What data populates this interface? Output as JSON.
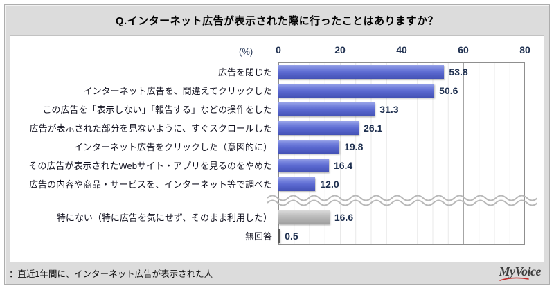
{
  "title": "Q.インターネット広告が表示された際に行ったことはありますか？",
  "footer": {
    "note": "：直近1年間に、インターネット広告が表示された人",
    "logo": "MyVoice"
  },
  "chart_data": {
    "type": "bar",
    "orientation": "horizontal",
    "title": "Q.インターネット広告が表示された際に行ったことはありますか？",
    "unit_label": "(%)",
    "xlabel": "",
    "ylabel": "",
    "xlim": [
      0,
      80
    ],
    "axis_ticks": [
      0,
      20,
      40,
      60,
      80
    ],
    "grid": {
      "minor_step": 5,
      "major_step": 20,
      "grid_on": true
    },
    "categories": [
      "広告を閉じた",
      "インターネット広告を、間違えてクリックした",
      "この広告を「表示しない」「報告する」などの操作をした",
      "広告が表示された部分を見ないように、すぐスクロールした",
      "インターネット広告をクリックした（意図的に）",
      "その広告が表示されたWebサイト・アプリを見るのをやめた",
      "広告の内容や商品・サービスを、インターネット等で調べた",
      "特にない（特に広告を気にせず、そのまま利用した）",
      "無回答"
    ],
    "values": [
      53.8,
      50.6,
      31.3,
      26.1,
      19.8,
      16.4,
      12.0,
      16.6,
      0.5
    ],
    "value_labels": [
      "53.8",
      "50.6",
      "31.3",
      "26.1",
      "19.8",
      "16.4",
      "12.0",
      "16.6",
      "0.5"
    ],
    "bar_styles": [
      "blue",
      "blue",
      "blue",
      "blue",
      "blue",
      "blue",
      "blue",
      "gray",
      "white"
    ],
    "break_after_index": 6,
    "colors": {
      "bar_blue": "#5a68cf",
      "bar_gray": "#b3b3b3",
      "value_text": "#1f3050",
      "wave": "#b8b8b8",
      "logo_red": "#c22a2a",
      "band_bg": "#dcdcdc"
    }
  }
}
